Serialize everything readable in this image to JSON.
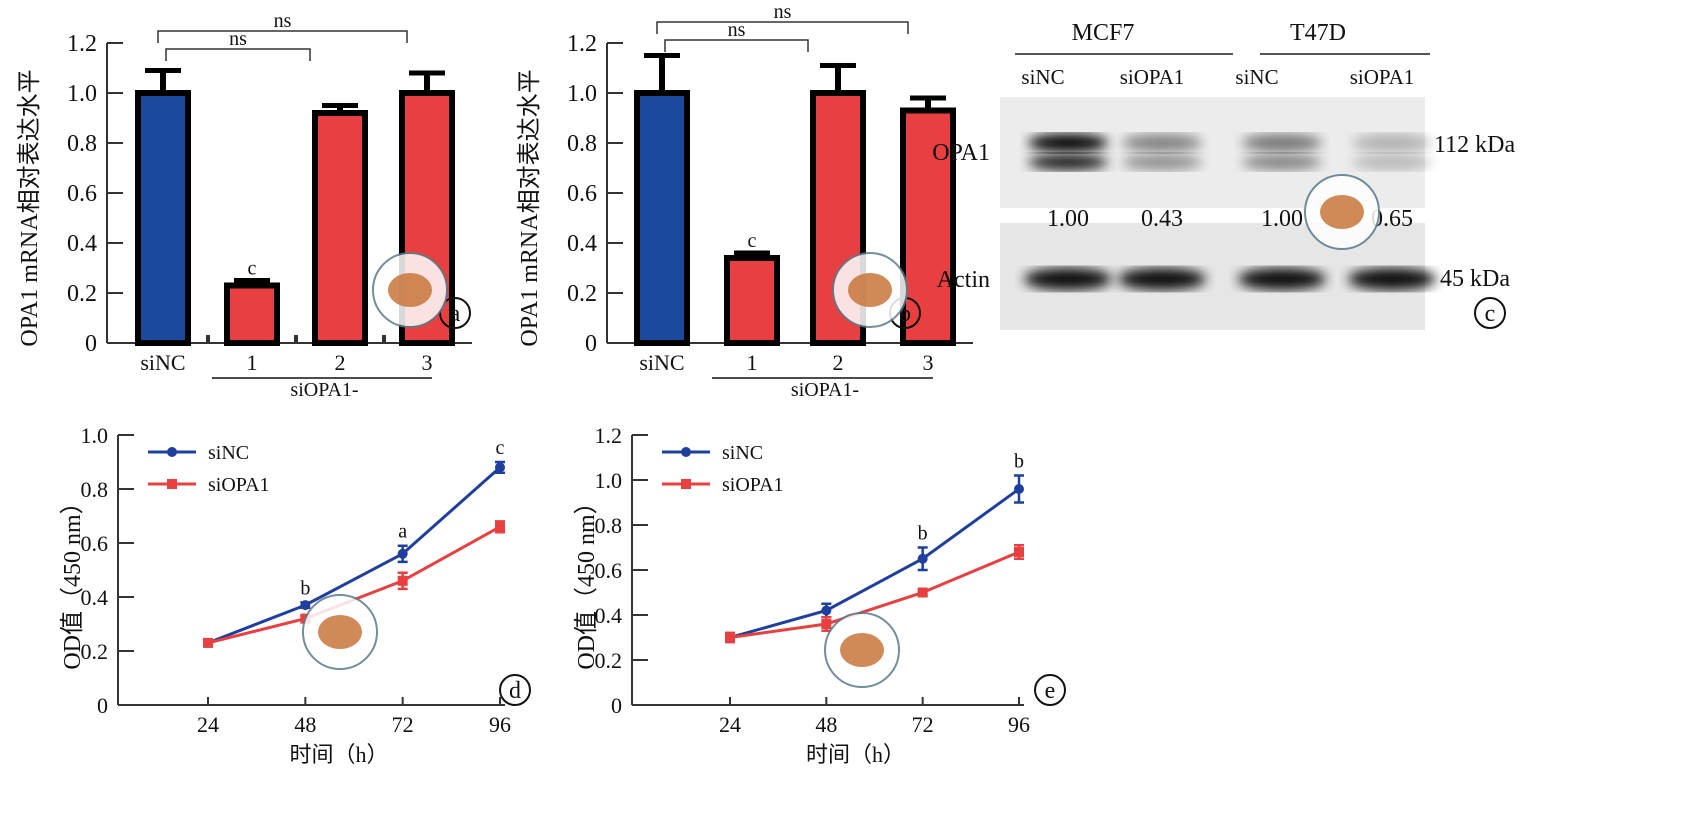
{
  "chart_data": [
    {
      "panel": "a",
      "type": "bar",
      "ylabel": "OPA1 mRNA相对表达水平",
      "ylim": [
        0,
        1.2
      ],
      "yticks": [
        "0",
        "0.2",
        "0.4",
        "0.6",
        "0.8",
        "1.0",
        "1.2"
      ],
      "categories": [
        "siNC",
        "1",
        "2",
        "3"
      ],
      "group_label": "siOPA1-",
      "values": [
        1.0,
        0.23,
        0.92,
        1.0
      ],
      "errors": [
        0.09,
        0.02,
        0.03,
        0.08
      ],
      "colors": [
        "#1b4a9c",
        "#e84040",
        "#e84040",
        "#e84040"
      ],
      "annotations": [
        "",
        "c",
        "",
        ""
      ],
      "brackets": [
        {
          "label": "ns",
          "from": "siNC",
          "to": "2"
        },
        {
          "label": "ns",
          "from": "siNC",
          "to": "3"
        }
      ],
      "panel_label": "a"
    },
    {
      "panel": "b",
      "type": "bar",
      "ylabel": "OPA1 mRNA相对表达水平",
      "ylim": [
        0,
        1.2
      ],
      "yticks": [
        "0",
        "0.2",
        "0.4",
        "0.6",
        "0.8",
        "1.0",
        "1.2"
      ],
      "categories": [
        "siNC",
        "1",
        "2",
        "3"
      ],
      "group_label": "siOPA1-",
      "values": [
        1.0,
        0.34,
        1.0,
        0.93
      ],
      "errors": [
        0.15,
        0.02,
        0.11,
        0.05
      ],
      "colors": [
        "#1b4a9c",
        "#e84040",
        "#e84040",
        "#e84040"
      ],
      "annotations": [
        "",
        "c",
        "",
        ""
      ],
      "brackets": [
        {
          "label": "ns",
          "from": "siNC",
          "to": "2"
        },
        {
          "label": "ns",
          "from": "siNC",
          "to": "3"
        }
      ],
      "panel_label": "b"
    },
    {
      "panel": "d",
      "type": "line",
      "xlabel": "时间（h）",
      "ylabel": "OD值（450 nm）",
      "ylim": [
        0,
        1.0
      ],
      "yticks": [
        "0",
        "0.2",
        "0.4",
        "0.6",
        "0.8",
        "1.0"
      ],
      "x": [
        24,
        48,
        72,
        96
      ],
      "series": [
        {
          "name": "siNC",
          "color": "#1f3f9e",
          "values": [
            0.23,
            0.37,
            0.56,
            0.88
          ],
          "errors": [
            0.005,
            0.01,
            0.03,
            0.02
          ]
        },
        {
          "name": "siOPA1",
          "color": "#e84040",
          "values": [
            0.23,
            0.32,
            0.46,
            0.66
          ],
          "errors": [
            0.005,
            0.01,
            0.03,
            0.02
          ]
        }
      ],
      "annotations": [
        "",
        "b",
        "a",
        "c"
      ],
      "panel_label": "d"
    },
    {
      "panel": "e",
      "type": "line",
      "xlabel": "时间（h）",
      "ylabel": "OD值（450 nm）",
      "ylim": [
        0,
        1.2
      ],
      "yticks": [
        "0",
        "0.2",
        "0.4",
        "0.6",
        "0.8",
        "1.0",
        "1.2"
      ],
      "x": [
        24,
        48,
        72,
        96
      ],
      "series": [
        {
          "name": "siNC",
          "color": "#1f3f9e",
          "values": [
            0.3,
            0.42,
            0.65,
            0.96
          ],
          "errors": [
            0.02,
            0.03,
            0.05,
            0.06
          ]
        },
        {
          "name": "siOPA1",
          "color": "#e84040",
          "values": [
            0.3,
            0.36,
            0.5,
            0.68
          ],
          "errors": [
            0.02,
            0.03,
            0.01,
            0.03
          ]
        }
      ],
      "annotations": [
        "",
        "",
        "b",
        "b"
      ],
      "panel_label": "e"
    }
  ],
  "blot": {
    "panel_label": "c",
    "cell_lines": [
      "MCF7",
      "T47D"
    ],
    "lanes": [
      "siNC",
      "siOPA1",
      "siNC",
      "siOPA1"
    ],
    "rows": [
      {
        "label": "OPA1",
        "size": "112 kDa"
      },
      {
        "label": "Actin",
        "size": "45 kDa"
      }
    ],
    "quantification": [
      "1.00",
      "0.43",
      "1.00",
      "0.65"
    ]
  }
}
